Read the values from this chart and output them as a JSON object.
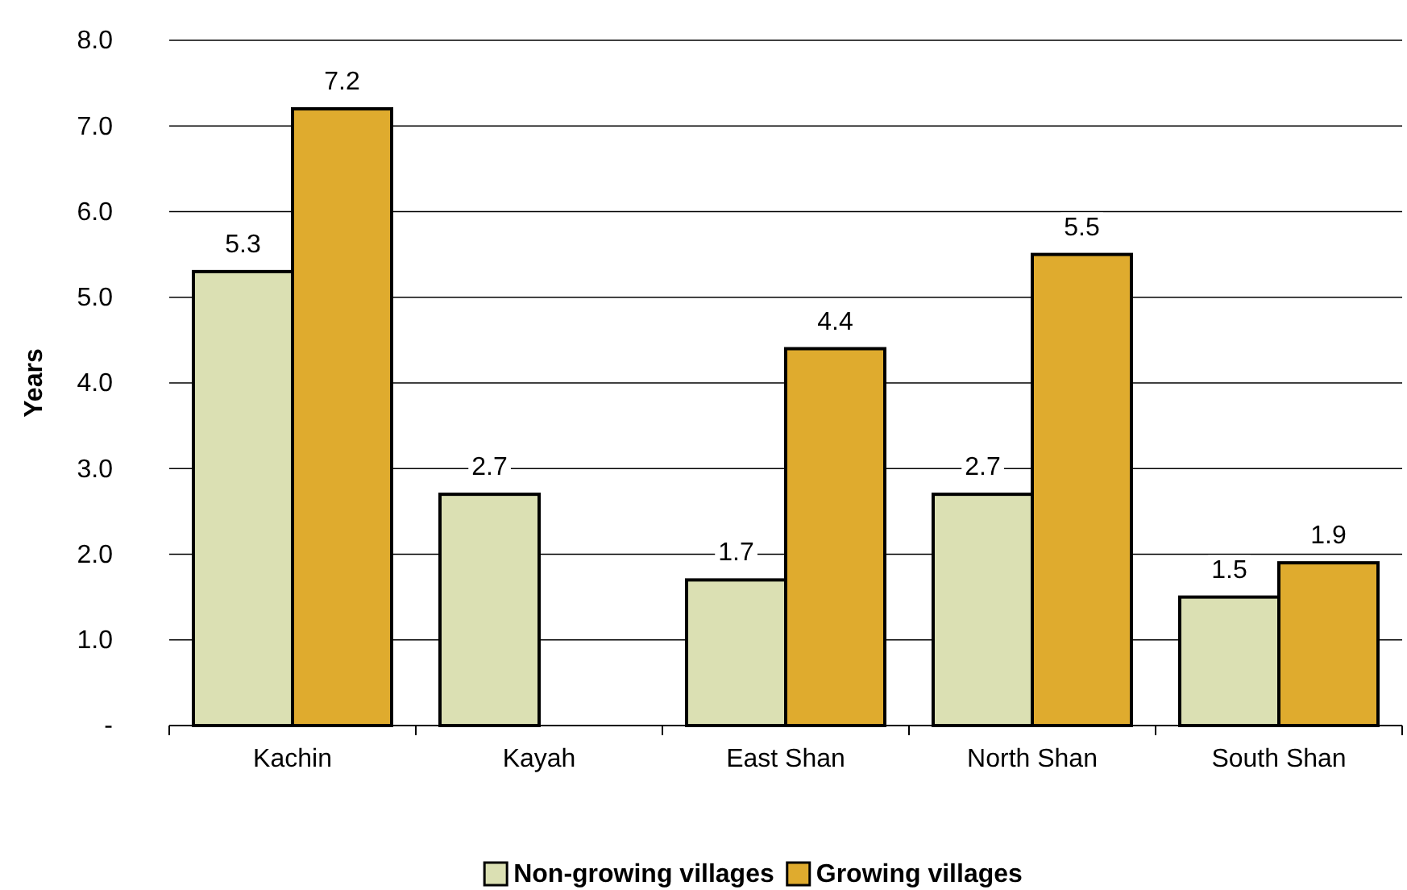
{
  "chart_data": {
    "type": "bar",
    "ylabel": "Years",
    "categories": [
      "Kachin",
      "Kayah",
      "East Shan",
      "North Shan",
      "South Shan"
    ],
    "series": [
      {
        "name": "Non-growing villages",
        "color": "#dbe0b3",
        "values": [
          5.3,
          2.7,
          1.7,
          2.7,
          1.5
        ]
      },
      {
        "name": "Growing villages",
        "color": "#dfab2e",
        "values": [
          7.2,
          null,
          4.4,
          5.5,
          1.9
        ]
      }
    ],
    "ylim": [
      0,
      8
    ],
    "yticks": [
      {
        "value": 0,
        "label": "-"
      },
      {
        "value": 1,
        "label": "1.0"
      },
      {
        "value": 2,
        "label": "2.0"
      },
      {
        "value": 3,
        "label": "3.0"
      },
      {
        "value": 4,
        "label": "4.0"
      },
      {
        "value": 5,
        "label": "5.0"
      },
      {
        "value": 6,
        "label": "6.0"
      },
      {
        "value": 7,
        "label": "7.0"
      },
      {
        "value": 8,
        "label": "8.0"
      }
    ],
    "grid": "y",
    "legend": "bottom",
    "data_labels": true
  }
}
